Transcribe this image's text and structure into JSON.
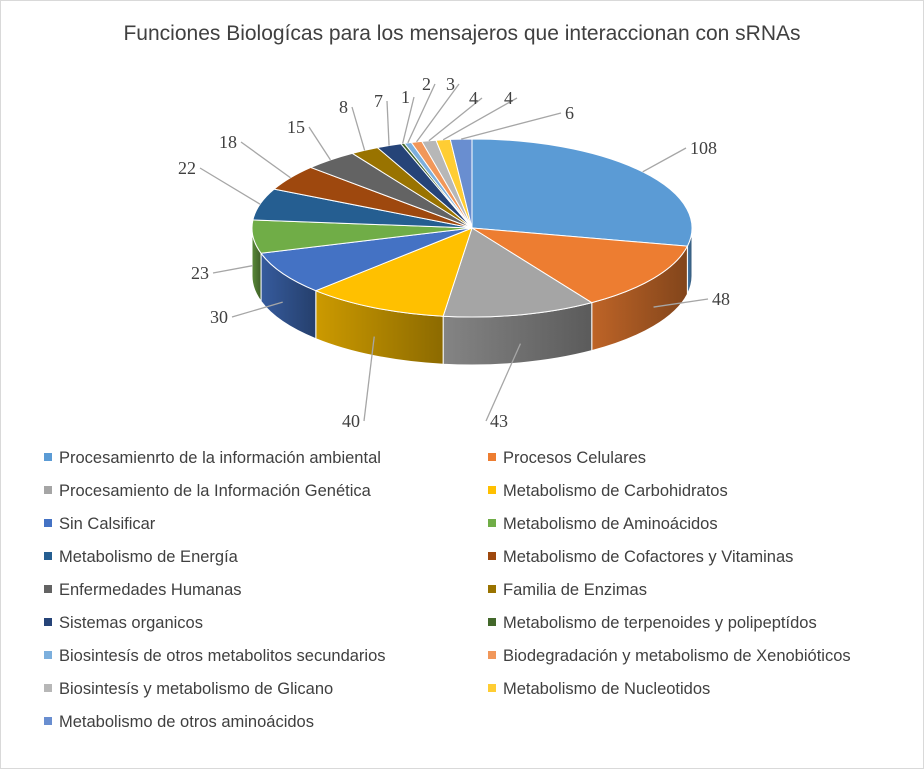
{
  "chart_data": {
    "type": "pie",
    "title": "Funciones Biologícas para los mensajeros que interaccionan con sRNAs",
    "legend_position": "bottom",
    "style": "3d",
    "series": [
      {
        "name": "Procesamienrto de la información ambiental",
        "value": 108,
        "color": "#5b9bd5"
      },
      {
        "name": "Procesos Celulares",
        "value": 48,
        "color": "#ed7d31"
      },
      {
        "name": "Procesamiento de la Información Genética",
        "value": 43,
        "color": "#a5a5a5"
      },
      {
        "name": "Metabolismo de Carbohidratos",
        "value": 40,
        "color": "#ffc000"
      },
      {
        "name": "Sin Calsificar",
        "value": 30,
        "color": "#4472c4"
      },
      {
        "name": "Metabolismo de Aminoácidos",
        "value": 23,
        "color": "#70ad47"
      },
      {
        "name": "Metabolismo de Energía",
        "value": 22,
        "color": "#255e91"
      },
      {
        "name": "Metabolismo de Cofactores y Vitaminas",
        "value": 18,
        "color": "#9e480e"
      },
      {
        "name": "Enfermedades Humanas",
        "value": 15,
        "color": "#636363"
      },
      {
        "name": "Familia de Enzimas",
        "value": 8,
        "color": "#997300"
      },
      {
        "name": "Sistemas organicos",
        "value": 7,
        "color": "#264478"
      },
      {
        "name": "Metabolismo de terpenoides y polipeptídos",
        "value": 1,
        "color": "#43682b"
      },
      {
        "name": "Biosintesís de otros metabolitos secundarios",
        "value": 2,
        "color": "#7cafdd"
      },
      {
        "name": "Biodegradación y metabolismo de Xenobióticos",
        "value": 3,
        "color": "#f1975a"
      },
      {
        "name": "Biosintesís y metabolismo de Glicano",
        "value": 4,
        "color": "#b7b7b7"
      },
      {
        "name": "Metabolismo de Nucleotidos",
        "value": 4,
        "color": "#ffcd33"
      },
      {
        "name": "Metabolismo de otros aminoácidos",
        "value": 6,
        "color": "#698ed0"
      }
    ]
  }
}
